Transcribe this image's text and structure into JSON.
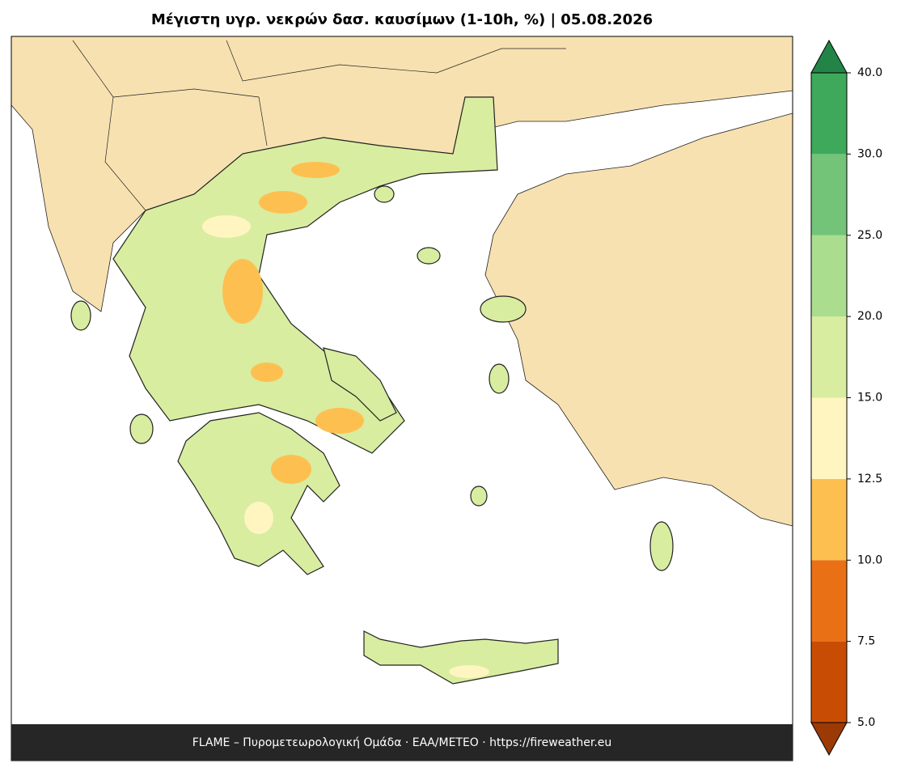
{
  "title": "Μέγιστη υγρ. νεκρών δασ. καυσίμων (1-10h, %)  |  05.08.2026",
  "footer": "FLAME – Πυρομετεωρολογική Ομάδα · ΕΑΑ/METEO · https://fireweather.eu",
  "colorbar": {
    "ticks": [
      {
        "value": 5,
        "label": "5.0"
      },
      {
        "value": 7.5,
        "label": "7.5"
      },
      {
        "value": 10,
        "label": "10.0"
      },
      {
        "value": 12.5,
        "label": "12.5"
      },
      {
        "value": 15,
        "label": "15.0"
      },
      {
        "value": 20,
        "label": "20.0"
      },
      {
        "value": 25,
        "label": "25.0"
      },
      {
        "value": 30,
        "label": "30.0"
      },
      {
        "value": 40,
        "label": "40.0"
      }
    ],
    "colors": [
      "#c94c05",
      "#ea7016",
      "#fdc050",
      "#fff5c0",
      "#d8eda0",
      "#abdd8e",
      "#73c378",
      "#3ea95a"
    ],
    "under_color": "#9c3a06",
    "over_color": "#228547"
  }
}
